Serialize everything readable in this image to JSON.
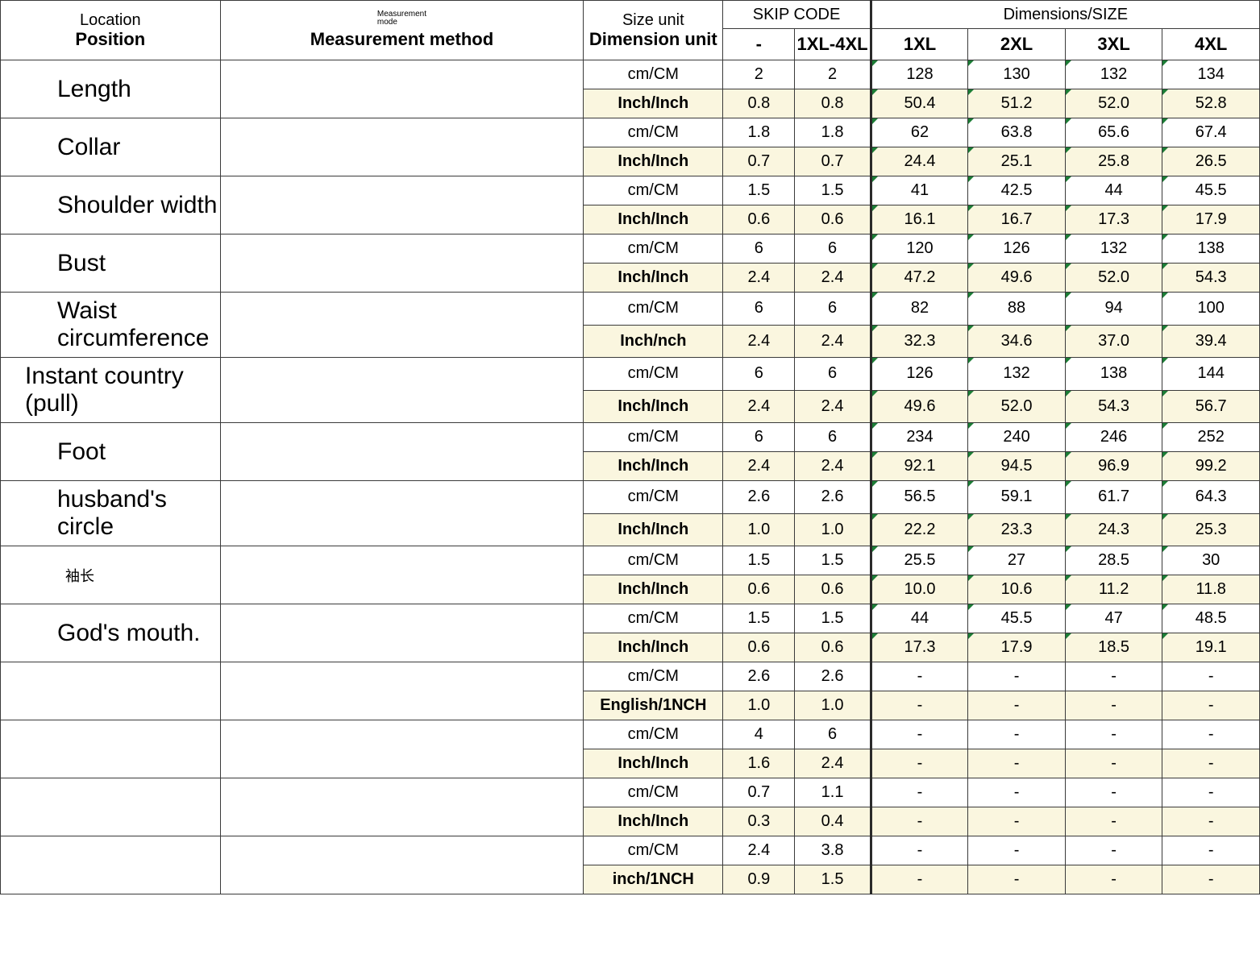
{
  "header": {
    "location_top": "Location",
    "location_bottom": "Position",
    "method_tiny1": "Measurement",
    "method_tiny2": "mode",
    "method_bottom": "Measurement method",
    "unit_top": "Size unit",
    "unit_bottom": "Dimension unit",
    "skip_title": "SKIP CODE",
    "skip_dash": "-",
    "skip_range": "1XL-4XL",
    "dim_title": "Dimensions/SIZE",
    "size1": "1XL",
    "size2": "2XL",
    "size3": "3XL",
    "size4": "4XL"
  },
  "units": {
    "cm": "cm/CM",
    "inch": "Inch/Inch",
    "inch_nch": "Inch/nch",
    "english": "English/1NCH",
    "inch_1nch": "inch/1NCH"
  },
  "rows": [
    {
      "label": "Length",
      "cls": "row-label",
      "cm": {
        "s1": "2",
        "s2": "2",
        "d1": "128",
        "d2": "130",
        "d3": "132",
        "d4": "134"
      },
      "in": {
        "u": "inch",
        "s1": "0.8",
        "s2": "0.8",
        "d1": "50.4",
        "d2": "51.2",
        "d3": "52.0",
        "d4": "52.8"
      }
    },
    {
      "label": "Collar",
      "cls": "row-label",
      "cm": {
        "s1": "1.8",
        "s2": "1.8",
        "d1": "62",
        "d2": "63.8",
        "d3": "65.6",
        "d4": "67.4"
      },
      "in": {
        "u": "inch",
        "s1": "0.7",
        "s2": "0.7",
        "d1": "24.4",
        "d2": "25.1",
        "d3": "25.8",
        "d4": "26.5"
      }
    },
    {
      "label": "Shoulder width",
      "cls": "row-label",
      "cm": {
        "s1": "1.5",
        "s2": "1.5",
        "d1": "41",
        "d2": "42.5",
        "d3": "44",
        "d4": "45.5"
      },
      "in": {
        "u": "inch",
        "s1": "0.6",
        "s2": "0.6",
        "d1": "16.1",
        "d2": "16.7",
        "d3": "17.3",
        "d4": "17.9"
      }
    },
    {
      "label": "Bust",
      "cls": "row-label",
      "cm": {
        "s1": "6",
        "s2": "6",
        "d1": "120",
        "d2": "126",
        "d3": "132",
        "d4": "138"
      },
      "in": {
        "u": "inch",
        "s1": "2.4",
        "s2": "2.4",
        "d1": "47.2",
        "d2": "49.6",
        "d3": "52.0",
        "d4": "54.3"
      }
    },
    {
      "label": "Waist circumference",
      "cls": "row-label",
      "cm": {
        "s1": "6",
        "s2": "6",
        "d1": "82",
        "d2": "88",
        "d3": "94",
        "d4": "100"
      },
      "in": {
        "u": "inch_nch",
        "s1": "2.4",
        "s2": "2.4",
        "d1": "32.3",
        "d2": "34.6",
        "d3": "37.0",
        "d4": "39.4"
      }
    },
    {
      "label": "Instant country (pull)",
      "cls": "row-label-alt",
      "cm": {
        "s1": "6",
        "s2": "6",
        "d1": "126",
        "d2": "132",
        "d3": "138",
        "d4": "144"
      },
      "in": {
        "u": "inch",
        "s1": "2.4",
        "s2": "2.4",
        "d1": "49.6",
        "d2": "52.0",
        "d3": "54.3",
        "d4": "56.7"
      }
    },
    {
      "label": "Foot",
      "cls": "row-label",
      "cm": {
        "s1": "6",
        "s2": "6",
        "d1": "234",
        "d2": "240",
        "d3": "246",
        "d4": "252"
      },
      "in": {
        "u": "inch",
        "s1": "2.4",
        "s2": "2.4",
        "d1": "92.1",
        "d2": "94.5",
        "d3": "96.9",
        "d4": "99.2"
      }
    },
    {
      "label": "husband's circle",
      "cls": "row-label",
      "cm": {
        "s1": "2.6",
        "s2": "2.6",
        "d1": "56.5",
        "d2": "59.1",
        "d3": "61.7",
        "d4": "64.3"
      },
      "in": {
        "u": "inch",
        "s1": "1.0",
        "s2": "1.0",
        "d1": "22.2",
        "d2": "23.3",
        "d3": "24.3",
        "d4": "25.3"
      }
    },
    {
      "label": "袖长",
      "cls": "row-label-cn",
      "cm": {
        "s1": "1.5",
        "s2": "1.5",
        "d1": "25.5",
        "d2": "27",
        "d3": "28.5",
        "d4": "30"
      },
      "in": {
        "u": "inch",
        "s1": "0.6",
        "s2": "0.6",
        "d1": "10.0",
        "d2": "10.6",
        "d3": "11.2",
        "d4": "11.8"
      }
    },
    {
      "label": "God's mouth.",
      "cls": "row-label",
      "cm": {
        "s1": "1.5",
        "s2": "1.5",
        "d1": "44",
        "d2": "45.5",
        "d3": "47",
        "d4": "48.5"
      },
      "in": {
        "u": "inch",
        "s1": "0.6",
        "s2": "0.6",
        "d1": "17.3",
        "d2": "17.9",
        "d3": "18.5",
        "d4": "19.1"
      }
    },
    {
      "label": "",
      "cls": "row-label",
      "cm": {
        "s1": "2.6",
        "s2": "2.6",
        "d1": "-",
        "d2": "-",
        "d3": "-",
        "d4": "-"
      },
      "in": {
        "u": "english",
        "s1": "1.0",
        "s2": "1.0",
        "d1": "-",
        "d2": "-",
        "d3": "-",
        "d4": "-"
      }
    },
    {
      "label": "",
      "cls": "row-label",
      "cm": {
        "s1": "4",
        "s2": "6",
        "d1": "-",
        "d2": "-",
        "d3": "-",
        "d4": "-"
      },
      "in": {
        "u": "inch",
        "s1": "1.6",
        "s2": "2.4",
        "d1": "-",
        "d2": "-",
        "d3": "-",
        "d4": "-"
      }
    },
    {
      "label": "",
      "cls": "row-label",
      "cm": {
        "s1": "0.7",
        "s2": "1.1",
        "d1": "-",
        "d2": "-",
        "d3": "-",
        "d4": "-"
      },
      "in": {
        "u": "inch",
        "s1": "0.3",
        "s2": "0.4",
        "d1": "-",
        "d2": "-",
        "d3": "-",
        "d4": "-"
      }
    },
    {
      "label": "",
      "cls": "row-label",
      "cm": {
        "s1": "2.4",
        "s2": "3.8",
        "d1": "-",
        "d2": "-",
        "d3": "-",
        "d4": "-"
      },
      "in": {
        "u": "inch_1nch",
        "s1": "0.9",
        "s2": "1.5",
        "d1": "-",
        "d2": "-",
        "d3": "-",
        "d4": "-"
      }
    }
  ]
}
